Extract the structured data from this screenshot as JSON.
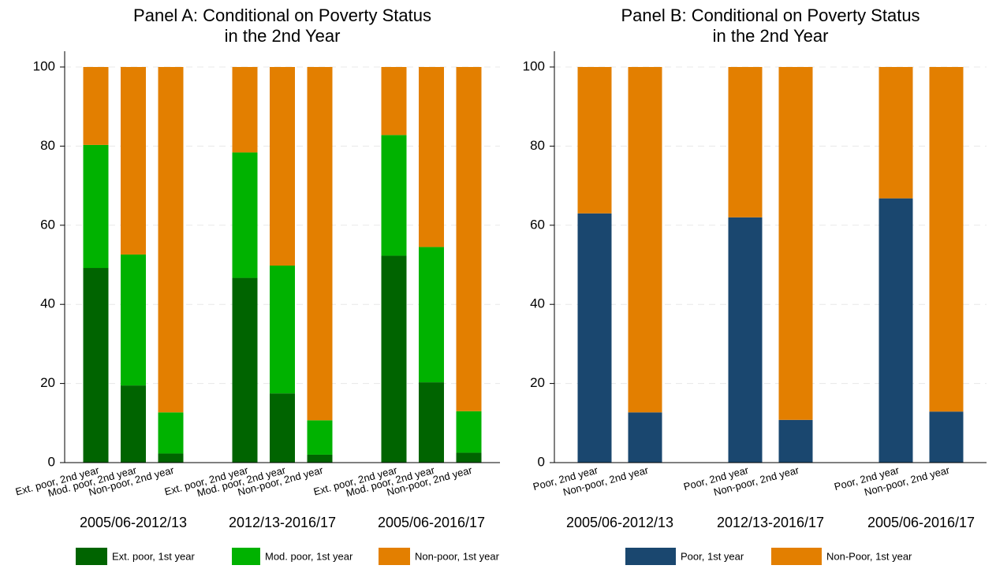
{
  "chart_data": [
    {
      "type": "stacked-bar",
      "title": [
        "Panel A: Conditional on Poverty Status",
        "in the 2nd Year"
      ],
      "groups": [
        "2005/06-2012/13",
        "2012/13-2016/17",
        "2005/06-2016/17"
      ],
      "categories": [
        "Ext. poor, 2nd year",
        "Mod. poor, 2nd year",
        "Non-poor, 2nd year",
        "Ext. poor, 2nd year",
        "Mod. poor, 2nd year",
        "Non-poor, 2nd year",
        "Ext. poor, 2nd year",
        "Mod. poor, 2nd year",
        "Non-poor, 2nd year"
      ],
      "series": [
        {
          "name": "Ext. poor, 1st year",
          "color": "#006400",
          "values": [
            49.2,
            19.5,
            2.3,
            46.7,
            17.5,
            2.0,
            52.3,
            20.3,
            2.5
          ]
        },
        {
          "name": "Mod. poor, 1st year",
          "color": "#00b200",
          "values": [
            31.1,
            33.1,
            10.4,
            31.7,
            32.3,
            8.7,
            30.5,
            34.2,
            10.5
          ]
        },
        {
          "name": "Non-poor, 1st year",
          "color": "#e37f00",
          "values": [
            19.7,
            47.4,
            87.3,
            21.6,
            50.2,
            89.3,
            17.2,
            45.5,
            87.0
          ]
        }
      ],
      "ylim": [
        0,
        100
      ],
      "yticks": [
        0,
        20,
        40,
        60,
        80,
        100
      ],
      "grid": true
    },
    {
      "type": "stacked-bar",
      "title": [
        "Panel B: Conditional on Poverty Status",
        "in the 2nd Year"
      ],
      "groups": [
        "2005/06-2012/13",
        "2012/13-2016/17",
        "2005/06-2016/17"
      ],
      "categories": [
        "Poor, 2nd year",
        "Non-poor, 2nd year",
        "Poor, 2nd year",
        "Non-poor, 2nd year",
        "Poor, 2nd year",
        "Non-poor, 2nd year"
      ],
      "series": [
        {
          "name": "Poor, 1st year",
          "color": "#1a476f",
          "values": [
            63.0,
            12.7,
            62.0,
            10.8,
            66.8,
            12.9
          ]
        },
        {
          "name": "Non-Poor, 1st year",
          "color": "#e37f00",
          "values": [
            37.0,
            87.3,
            38.0,
            89.2,
            33.2,
            87.1
          ]
        }
      ],
      "ylim": [
        0,
        100
      ],
      "yticks": [
        0,
        20,
        40,
        60,
        80,
        100
      ],
      "grid": true
    }
  ]
}
